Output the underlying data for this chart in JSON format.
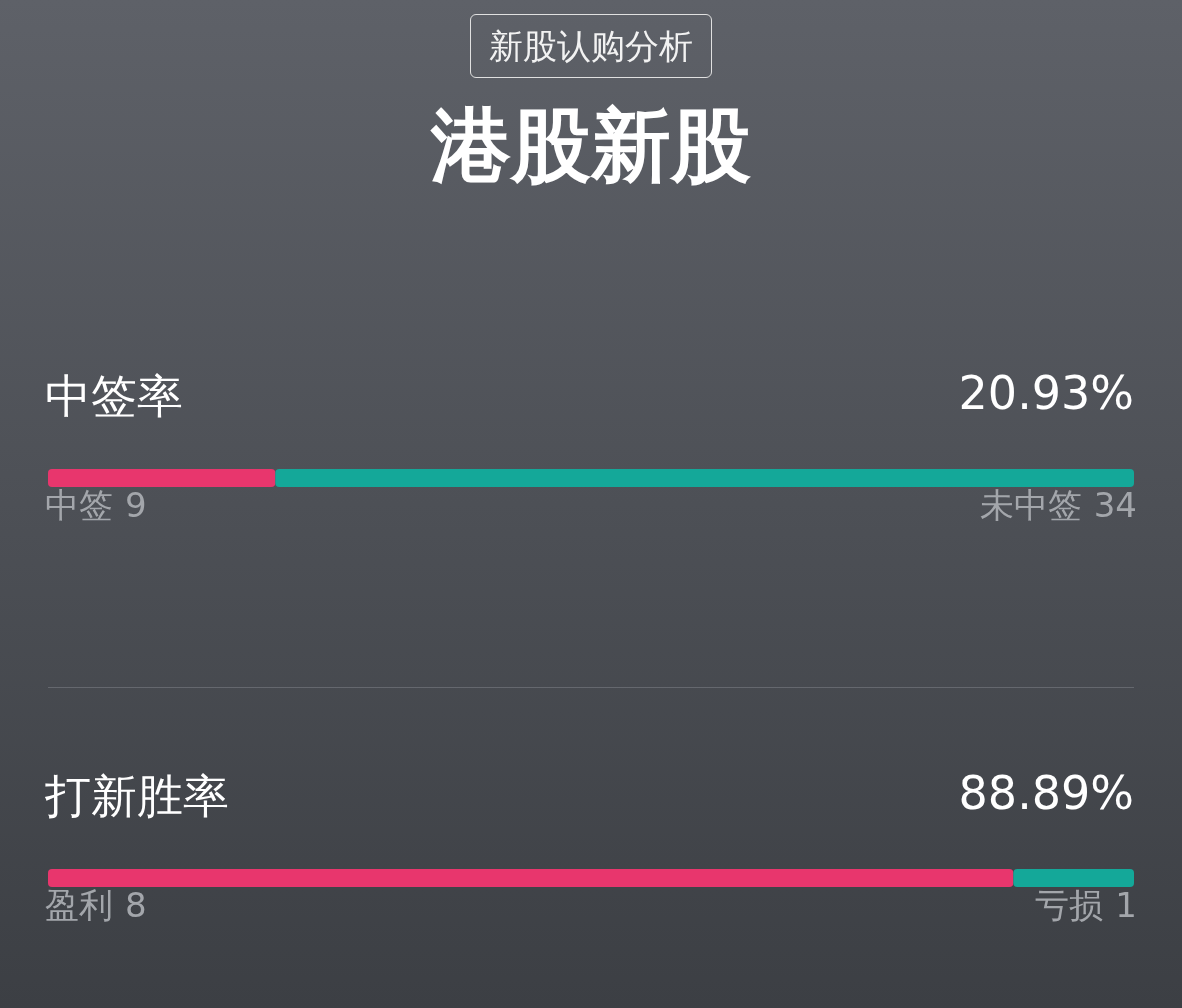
{
  "chart_data": [
    {
      "type": "other",
      "title": "港股新股",
      "annotations": [
        "新股认购分析"
      ]
    },
    {
      "type": "bar",
      "orientation": "horizontal",
      "stacked": true,
      "title": "中签率",
      "annotations": [
        "20.93%"
      ],
      "data_labels": true,
      "categories": [
        null
      ],
      "series": [
        {
          "name": "中签",
          "color": "#e8366d",
          "values": [
            9
          ]
        },
        {
          "name": "未中签",
          "color": "#14a899",
          "values": [
            34
          ]
        }
      ]
    },
    {
      "type": "bar",
      "orientation": "horizontal",
      "stacked": true,
      "title": "打新胜率",
      "annotations": [
        "88.89%"
      ],
      "data_labels": true,
      "categories": [
        null
      ],
      "series": [
        {
          "name": "盈利",
          "color": "#e8366d",
          "values": [
            8
          ]
        },
        {
          "name": "亏损",
          "color": "#14a899",
          "values": [
            1
          ]
        }
      ]
    }
  ]
}
